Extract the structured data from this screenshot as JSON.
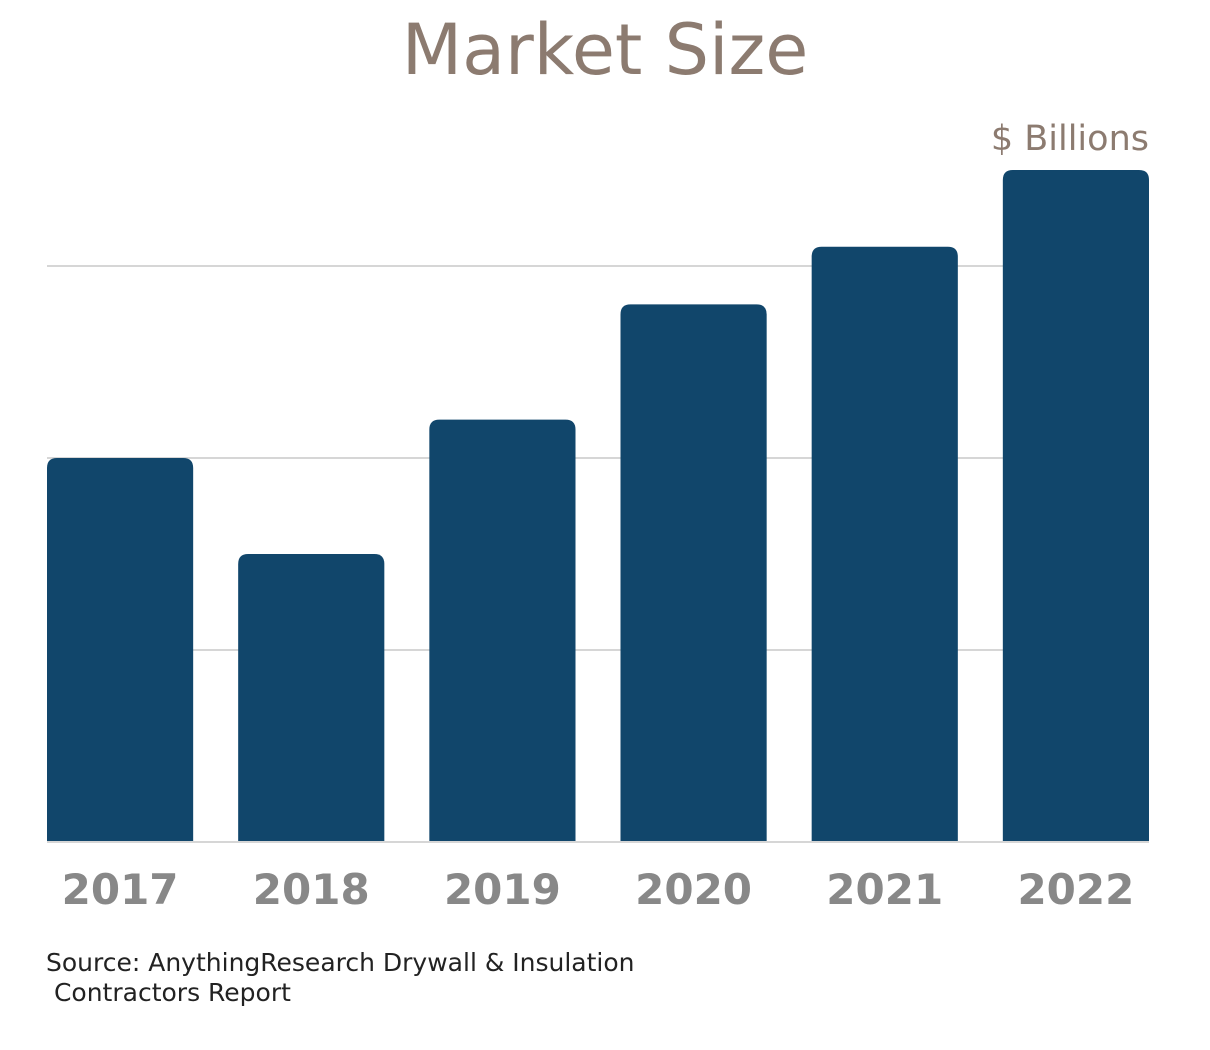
{
  "chart_data": {
    "type": "bar",
    "title": "Market Size",
    "ylabel": "$ Billions",
    "xlabel": "",
    "categories": [
      "2017",
      "2018",
      "2019",
      "2020",
      "2021",
      "2022"
    ],
    "values": [
      40.0,
      30.0,
      44.0,
      56.0,
      62.0,
      70.0
    ],
    "ylim": [
      0,
      70
    ],
    "gridlines": [
      20,
      40,
      60
    ],
    "bar_color": "#11466b",
    "grid_color": "#d6d6d6",
    "tick_label_color": "#888888",
    "grid": true,
    "legend": "none"
  },
  "source": "Source: AnythingResearch Drywall & Insulation\n Contractors Report"
}
